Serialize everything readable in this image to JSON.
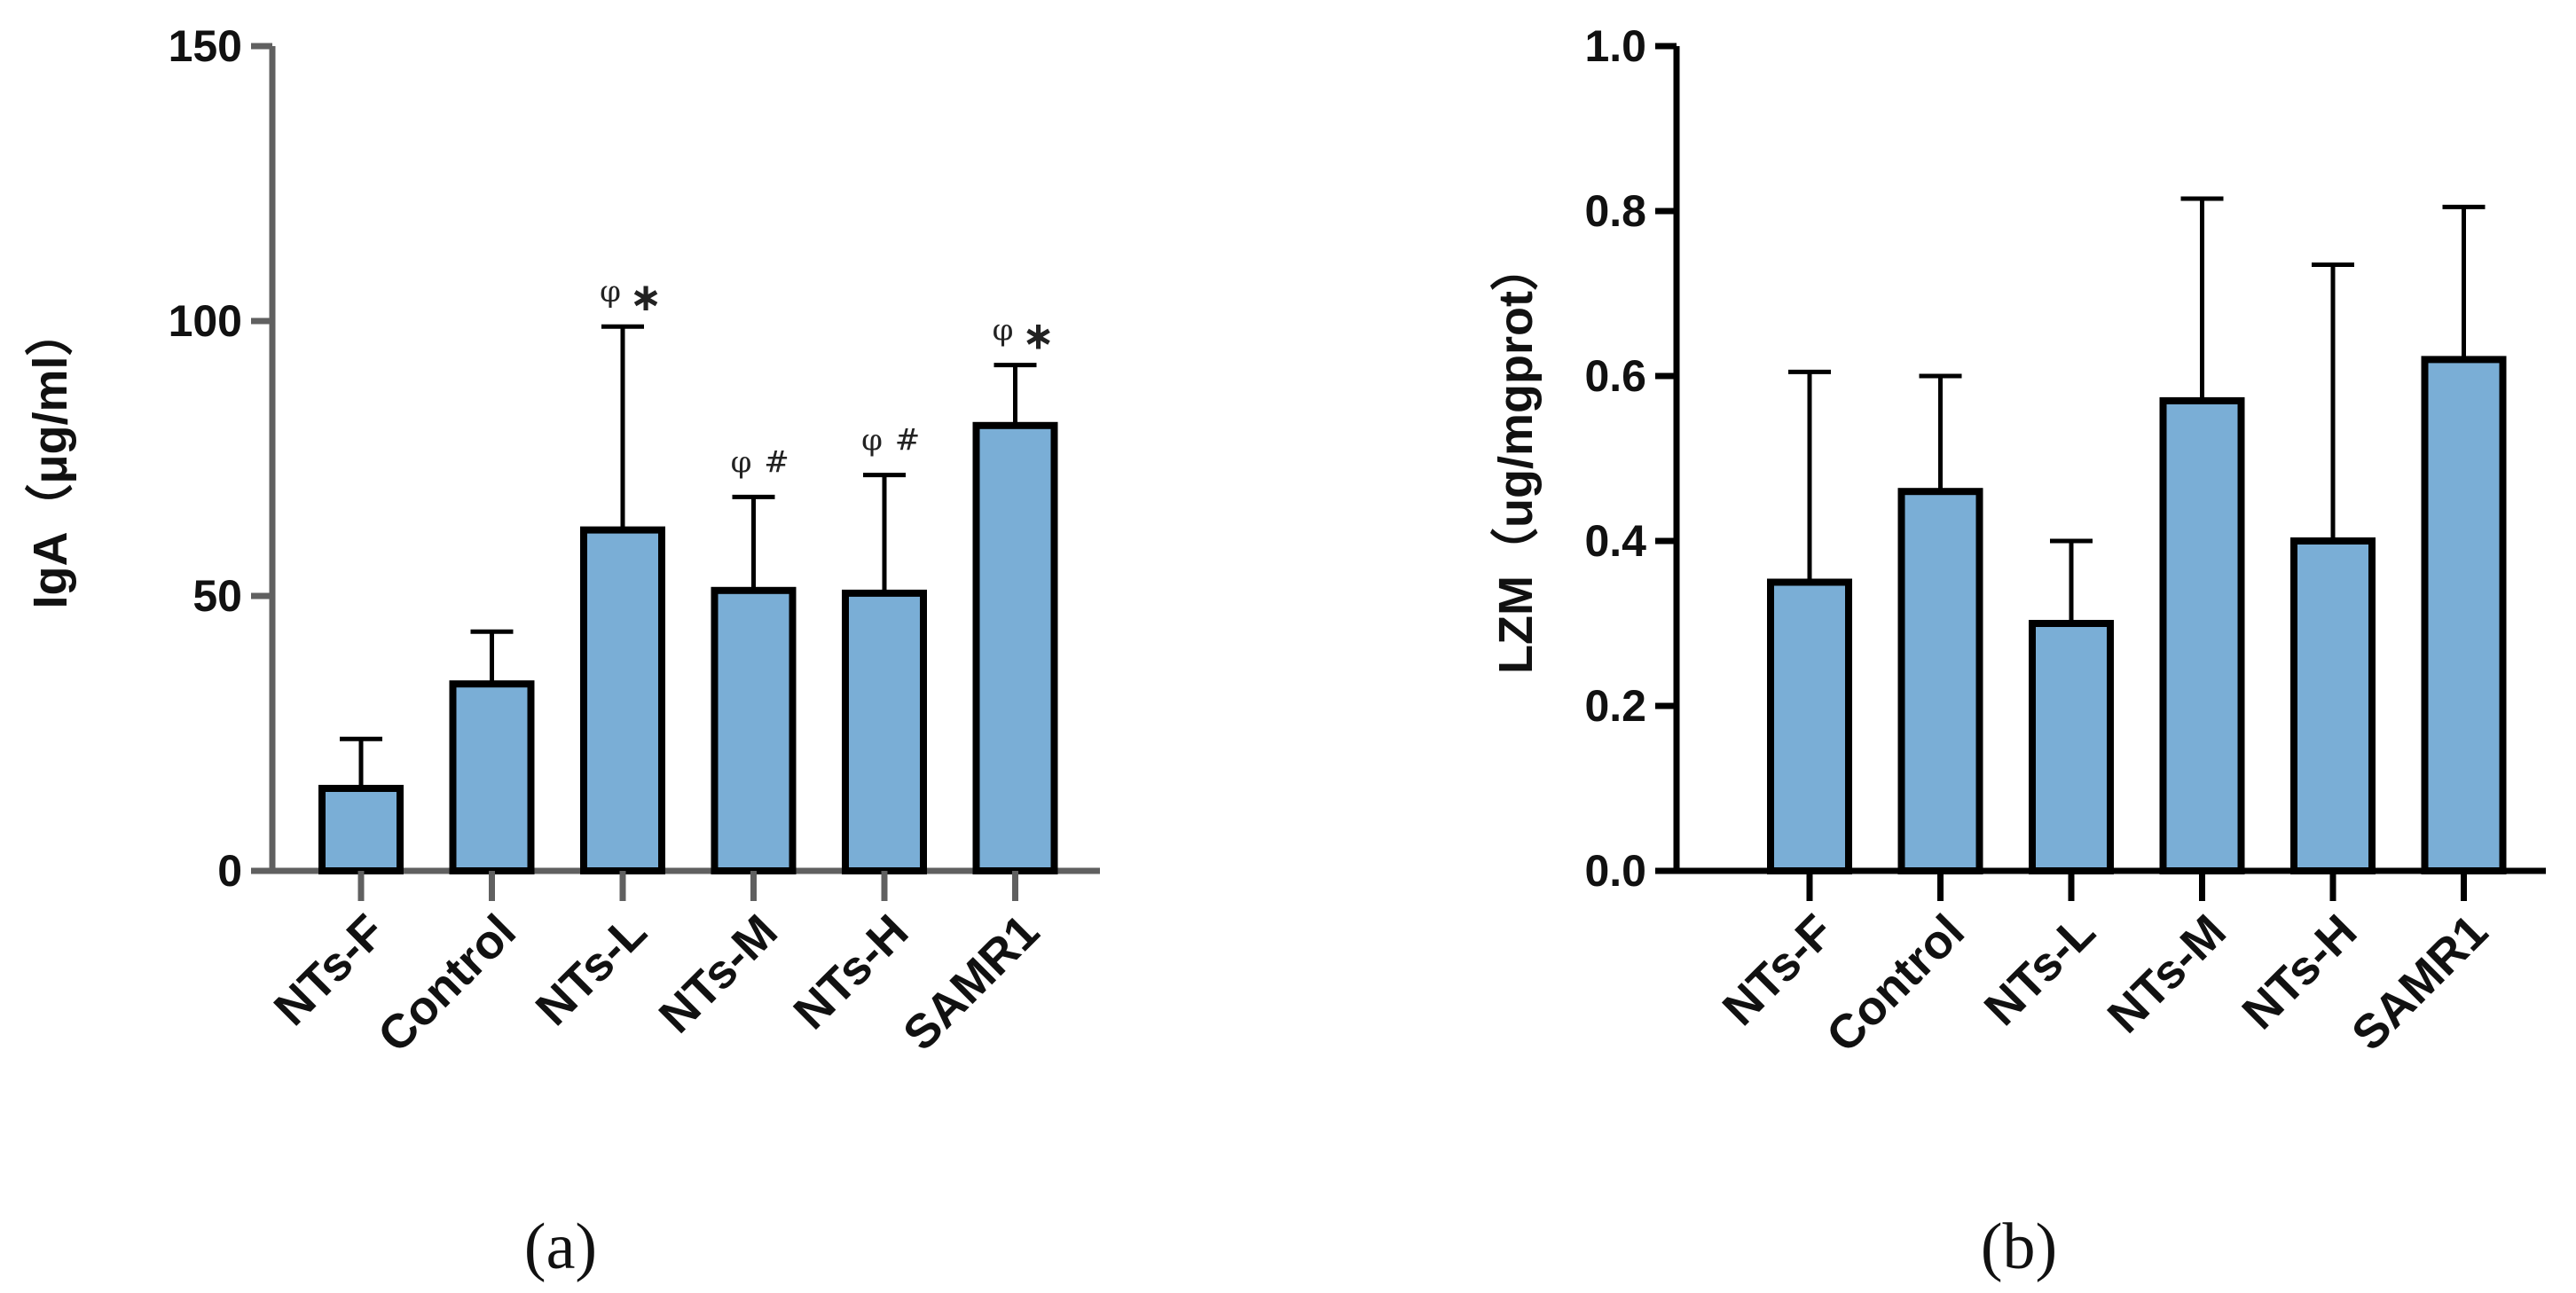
{
  "chart_data": [
    {
      "type": "bar",
      "panel": "(a)",
      "ylabel": "IgA（μg/ml）",
      "ylim": [
        0,
        150
      ],
      "yticks": [
        "0",
        "50",
        "100",
        "150"
      ],
      "categories": [
        "NTs-F",
        "Control",
        "NTs-L",
        "NTs-M",
        "NTs-H",
        "SAMR1"
      ],
      "values": [
        15,
        34,
        62,
        51,
        50.5,
        81
      ],
      "error_upper": [
        24,
        43.5,
        99,
        68,
        72,
        92
      ],
      "annotations": [
        {
          "index": 2,
          "phi": "φ",
          "mark": "∗"
        },
        {
          "index": 3,
          "phi": "φ",
          "mark": "#"
        },
        {
          "index": 4,
          "phi": "φ",
          "mark": "#"
        },
        {
          "index": 5,
          "phi": "φ",
          "mark": "∗"
        }
      ]
    },
    {
      "type": "bar",
      "panel": "(b)",
      "ylabel": "LZM（ug/mgprot）",
      "ylim": [
        0,
        1.0
      ],
      "yticks": [
        "0.0",
        "0.2",
        "0.4",
        "0.6",
        "0.8",
        "1.0"
      ],
      "categories": [
        "NTs-F",
        "Control",
        "NTs-L",
        "NTs-M",
        "NTs-H",
        "SAMR1"
      ],
      "values": [
        0.35,
        0.46,
        0.3,
        0.57,
        0.4,
        0.62
      ],
      "error_upper": [
        0.605,
        0.6,
        0.4,
        0.815,
        0.735,
        0.805
      ]
    }
  ],
  "colors": {
    "bar_fill": "#7aaed6",
    "axis_a": "#606060",
    "axis_b": "#000000"
  }
}
